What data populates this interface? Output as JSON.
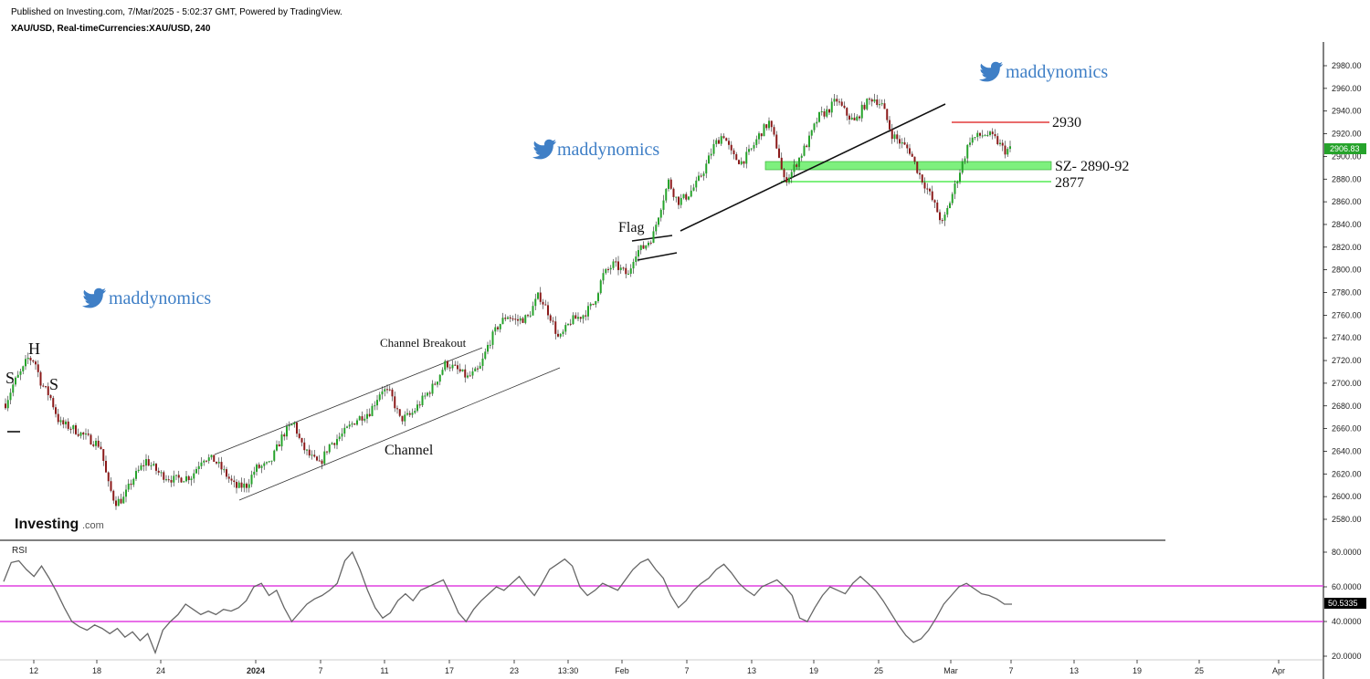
{
  "header": {
    "published": "Published on Investing.com, 7/Mar/2025 - 5:02:37 GMT, Powered by TradingView.",
    "symbol": "XAU/USD, Real-timeCurrencies:XAU/USD, 240"
  },
  "logo": {
    "text": "Investing",
    "suffix": ".com"
  },
  "watermarks": [
    "maddynomics",
    "maddynomics",
    "maddynomics"
  ],
  "annotations": {
    "s_left": "S",
    "h": "H",
    "s_right": "S",
    "channel_breakout": "Channel Breakout",
    "channel": "Channel",
    "flag": "Flag",
    "level_2930": "2930",
    "supply_zone": "SZ- 2890-92",
    "level_2877": "2877"
  },
  "price_axis": {
    "ticks": [
      "2980.00",
      "2960.00",
      "2940.00",
      "2920.00",
      "2900.00",
      "2880.00",
      "2860.00",
      "2840.00",
      "2820.00",
      "2800.00",
      "2780.00",
      "2760.00",
      "2740.00",
      "2720.00",
      "2700.00",
      "2680.00",
      "2660.00",
      "2640.00",
      "2620.00",
      "2600.00",
      "2580.00"
    ],
    "current": "2906.83"
  },
  "rsi_axis": {
    "label": "RSI",
    "ticks": [
      "80.0000",
      "60.0000",
      "40.0000",
      "20.0000"
    ],
    "current": "50.5335"
  },
  "time_axis": [
    "12",
    "18",
    "24",
    "2024",
    "7",
    "11",
    "17",
    "23",
    "13:30",
    "Feb",
    "7",
    "13",
    "19",
    "25",
    "Mar",
    "7",
    "13",
    "19",
    "25",
    "Apr"
  ],
  "colors": {
    "up": "#26a32b",
    "down": "#8b1a1a",
    "zone": "#7ef07e",
    "resistance": "#e23b3b",
    "rsi_band": "#e040e0",
    "rsi_line": "#666666",
    "brand": "#3f7fc6"
  },
  "chart_data": [
    {
      "type": "candlestick",
      "title": "XAU/USD, Real-timeCurrencies:XAU/USD, 240",
      "ylim": [
        2575,
        2990
      ],
      "current": 2906.83,
      "path_approx": [
        [
          0,
          2665
        ],
        [
          5,
          2680
        ],
        [
          15,
          2700
        ],
        [
          25,
          2712
        ],
        [
          30,
          2722
        ],
        [
          38,
          2720
        ],
        [
          45,
          2700
        ],
        [
          55,
          2688
        ],
        [
          65,
          2665
        ],
        [
          80,
          2660
        ],
        [
          95,
          2652
        ],
        [
          110,
          2645
        ],
        [
          118,
          2612
        ],
        [
          126,
          2595
        ],
        [
          135,
          2598
        ],
        [
          145,
          2615
        ],
        [
          160,
          2632
        ],
        [
          175,
          2620
        ],
        [
          190,
          2615
        ],
        [
          210,
          2618
        ],
        [
          222,
          2635
        ],
        [
          235,
          2632
        ],
        [
          245,
          2622
        ],
        [
          258,
          2608
        ],
        [
          270,
          2610
        ],
        [
          280,
          2625
        ],
        [
          295,
          2628
        ],
        [
          310,
          2655
        ],
        [
          322,
          2665
        ],
        [
          330,
          2645
        ],
        [
          340,
          2635
        ],
        [
          350,
          2628
        ],
        [
          360,
          2645
        ],
        [
          375,
          2655
        ],
        [
          390,
          2668
        ],
        [
          405,
          2675
        ],
        [
          418,
          2695
        ],
        [
          428,
          2690
        ],
        [
          438,
          2668
        ],
        [
          450,
          2672
        ],
        [
          462,
          2685
        ],
        [
          475,
          2698
        ],
        [
          488,
          2718
        ],
        [
          500,
          2712
        ],
        [
          512,
          2705
        ],
        [
          525,
          2712
        ],
        [
          535,
          2735
        ],
        [
          545,
          2750
        ],
        [
          555,
          2760
        ],
        [
          565,
          2755
        ],
        [
          578,
          2758
        ],
        [
          590,
          2778
        ],
        [
          602,
          2760
        ],
        [
          612,
          2738
        ],
        [
          625,
          2755
        ],
        [
          638,
          2760
        ],
        [
          650,
          2770
        ],
        [
          660,
          2795
        ],
        [
          672,
          2805
        ],
        [
          680,
          2800
        ],
        [
          688,
          2795
        ],
        [
          695,
          2815
        ],
        [
          705,
          2820
        ],
        [
          715,
          2830
        ],
        [
          722,
          2852
        ],
        [
          732,
          2878
        ],
        [
          742,
          2860
        ],
        [
          752,
          2865
        ],
        [
          762,
          2875
        ],
        [
          772,
          2890
        ],
        [
          782,
          2910
        ],
        [
          792,
          2920
        ],
        [
          802,
          2900
        ],
        [
          812,
          2895
        ],
        [
          822,
          2905
        ],
        [
          832,
          2920
        ],
        [
          842,
          2930
        ],
        [
          852,
          2905
        ],
        [
          858,
          2878
        ],
        [
          866,
          2885
        ],
        [
          876,
          2900
        ],
        [
          886,
          2915
        ],
        [
          896,
          2935
        ],
        [
          906,
          2940
        ],
        [
          916,
          2950
        ],
        [
          926,
          2938
        ],
        [
          936,
          2930
        ],
        [
          946,
          2945
        ],
        [
          956,
          2952
        ],
        [
          966,
          2945
        ],
        [
          976,
          2920
        ],
        [
          986,
          2912
        ],
        [
          996,
          2905
        ],
        [
          1006,
          2885
        ],
        [
          1016,
          2870
        ],
        [
          1026,
          2852
        ],
        [
          1032,
          2840
        ],
        [
          1040,
          2860
        ],
        [
          1048,
          2880
        ],
        [
          1056,
          2900
        ],
        [
          1062,
          2915
        ],
        [
          1072,
          2918
        ],
        [
          1080,
          2920
        ],
        [
          1090,
          2915
        ],
        [
          1100,
          2905
        ],
        [
          1108,
          2907
        ]
      ]
    },
    {
      "type": "line",
      "series": [
        {
          "name": "RSI"
        }
      ],
      "ylim": [
        15,
        85
      ],
      "current": 50.5335,
      "bands": [
        60,
        40
      ],
      "values": [
        63,
        74,
        75,
        70,
        66,
        72,
        65,
        57,
        48,
        40,
        37,
        35,
        38,
        36,
        33,
        36,
        31,
        34,
        29,
        33,
        22,
        35,
        40,
        44,
        50,
        47,
        44,
        46,
        44,
        47,
        46,
        48,
        52,
        60,
        62,
        55,
        58,
        48,
        40,
        45,
        50,
        53,
        55,
        58,
        62,
        75,
        80,
        70,
        58,
        48,
        42,
        45,
        52,
        56,
        52,
        58,
        60,
        62,
        64,
        55,
        45,
        40,
        47,
        52,
        56,
        60,
        58,
        62,
        66,
        60,
        55,
        62,
        70,
        73,
        76,
        72,
        60,
        55,
        58,
        62,
        60,
        58,
        64,
        70,
        74,
        76,
        70,
        65,
        55,
        48,
        52,
        58,
        62,
        65,
        70,
        73,
        68,
        62,
        58,
        55,
        60,
        62,
        64,
        60,
        55,
        42,
        40,
        48,
        55,
        60,
        58,
        56,
        62,
        66,
        62,
        58,
        52,
        45,
        38,
        32,
        28,
        30,
        35,
        42,
        50,
        55,
        60,
        62,
        59,
        56,
        55,
        53,
        50,
        50
      ]
    }
  ]
}
